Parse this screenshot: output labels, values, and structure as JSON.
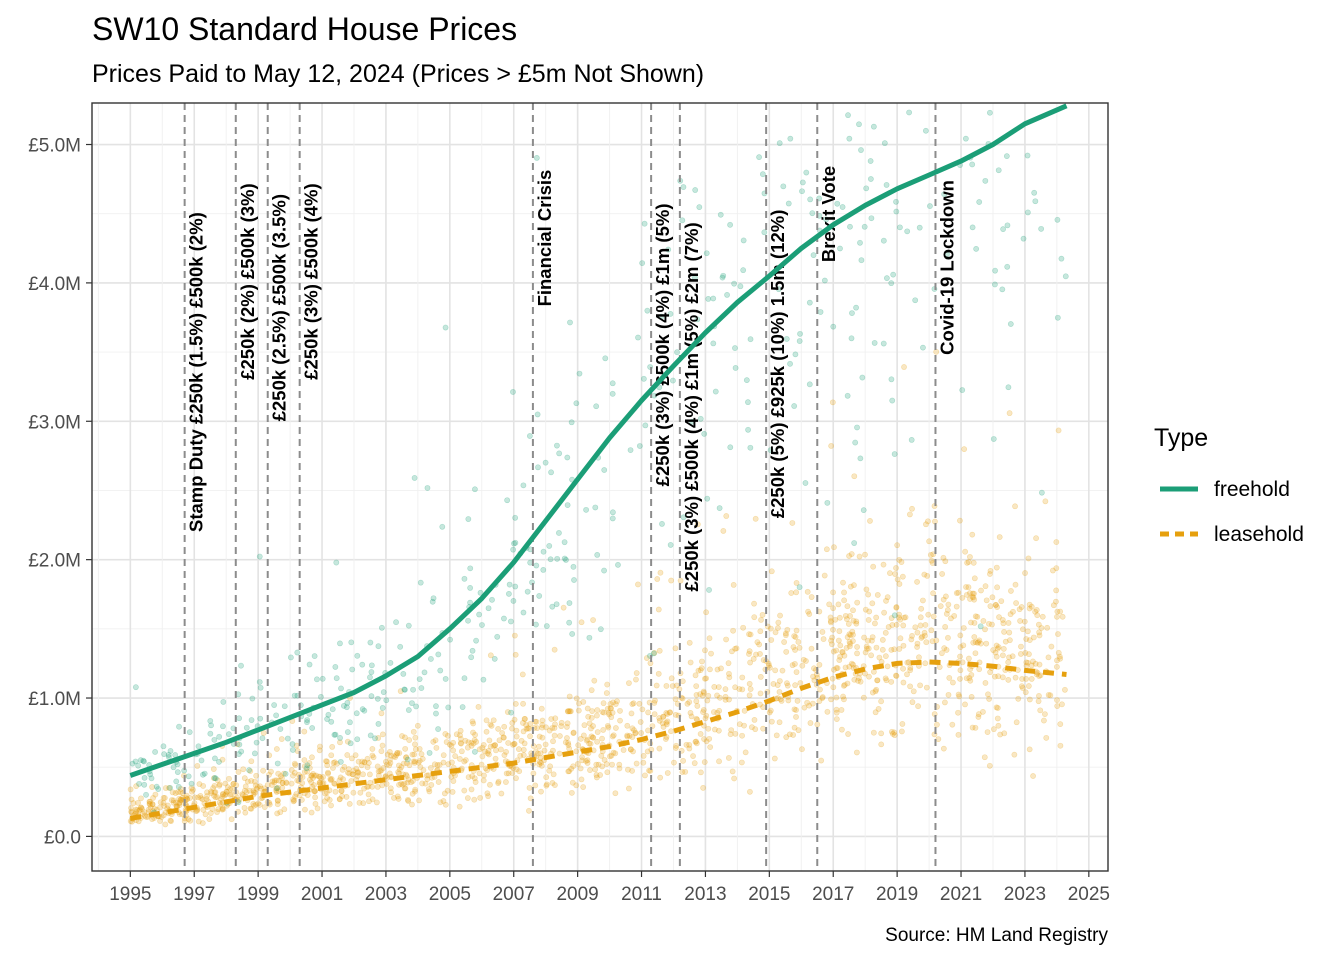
{
  "chart_data": {
    "type": "scatter",
    "title": "SW10 Standard House Prices",
    "subtitle": "Prices Paid to May 12, 2024 (Prices > £5m Not Shown)",
    "caption": "Source: HM Land Registry",
    "xlim": [
      1993.8,
      2025.6
    ],
    "ylim": [
      -250000,
      5300000
    ],
    "x_ticks": [
      1995,
      1997,
      1999,
      2001,
      2003,
      2005,
      2007,
      2009,
      2011,
      2013,
      2015,
      2017,
      2019,
      2021,
      2023,
      2025
    ],
    "x_tick_labels": [
      "1995",
      "1997",
      "1999",
      "2001",
      "2003",
      "2005",
      "2007",
      "2009",
      "2011",
      "2013",
      "2015",
      "2017",
      "2019",
      "2021",
      "2023",
      "2025"
    ],
    "y_ticks": [
      0,
      1000000,
      2000000,
      3000000,
      4000000,
      5000000
    ],
    "y_tick_labels": [
      "£0.0",
      "£1.0M",
      "£2.0M",
      "£3.0M",
      "£4.0M",
      "£5.0M"
    ],
    "grid": true,
    "legend": {
      "title": "Type",
      "position": "right",
      "items": [
        {
          "label": "freehold",
          "color": "#1b9e77",
          "dash": "solid"
        },
        {
          "label": "leasehold",
          "color": "#e6a00e",
          "dash": "dashed"
        }
      ]
    },
    "series": [
      {
        "name": "freehold",
        "color": "#1b9e77",
        "trend": {
          "x": [
            1995,
            1996,
            1997,
            1998,
            1999,
            2000,
            2001,
            2002,
            2003,
            2004,
            2005,
            2006,
            2007,
            2008,
            2009,
            2010,
            2011,
            2012,
            2013,
            2014,
            2015,
            2016,
            2017,
            2018,
            2019,
            2020,
            2021,
            2022,
            2023,
            2024.3
          ],
          "y": [
            440000,
            520000,
            600000,
            680000,
            770000,
            860000,
            950000,
            1040000,
            1160000,
            1300000,
            1500000,
            1720000,
            1980000,
            2280000,
            2580000,
            2880000,
            3150000,
            3400000,
            3640000,
            3860000,
            4050000,
            4250000,
            4420000,
            4560000,
            4680000,
            4780000,
            4880000,
            5000000,
            5150000,
            5280000
          ]
        }
      },
      {
        "name": "leasehold",
        "color": "#e6a00e",
        "trend": {
          "x": [
            1995,
            1996,
            1997,
            1998,
            1999,
            2000,
            2001,
            2002,
            2003,
            2004,
            2005,
            2006,
            2007,
            2008,
            2009,
            2010,
            2011,
            2012,
            2013,
            2014,
            2015,
            2016,
            2017,
            2018,
            2019,
            2020,
            2021,
            2022,
            2023,
            2024.3
          ],
          "y": [
            130000,
            170000,
            210000,
            250000,
            290000,
            320000,
            350000,
            380000,
            410000,
            440000,
            470000,
            500000,
            530000,
            570000,
            610000,
            650000,
            700000,
            760000,
            830000,
            900000,
            980000,
            1070000,
            1150000,
            1210000,
            1250000,
            1260000,
            1250000,
            1230000,
            1200000,
            1170000
          ]
        }
      }
    ],
    "events": [
      {
        "x": 1996.7,
        "label": "Stamp Duty £250k (1.5%) £500k (2%)",
        "anchor_y": 2200000
      },
      {
        "x": 1998.3,
        "label": "£250k (2%) £500k (3%)",
        "anchor_y": 3300000
      },
      {
        "x": 1999.3,
        "label": "£250k (2.5%) £500k (3.5%)",
        "anchor_y": 3000000
      },
      {
        "x": 2000.3,
        "label": "£250k (3%) £500k (4%)",
        "anchor_y": 3300000
      },
      {
        "x": 2007.6,
        "label": "Financial Crisis",
        "anchor_y": 3830000
      },
      {
        "x": 2011.3,
        "label": "£250k (3%) £500k (4%) £1m (5%)",
        "anchor_y": 2530000
      },
      {
        "x": 2012.2,
        "label": "£250k (3%) £500k (4%) £1m (5%) £2m (7%)",
        "anchor_y": 1770000
      },
      {
        "x": 2014.9,
        "label": "£250k (5%) £925k (10%) 1.5m (12%)",
        "anchor_y": 2300000
      },
      {
        "x": 2016.5,
        "label": "Brexit Vote",
        "anchor_y": 4150000
      },
      {
        "x": 2020.2,
        "label": "Covid-19 Lockdown",
        "anchor_y": 3480000
      }
    ]
  }
}
